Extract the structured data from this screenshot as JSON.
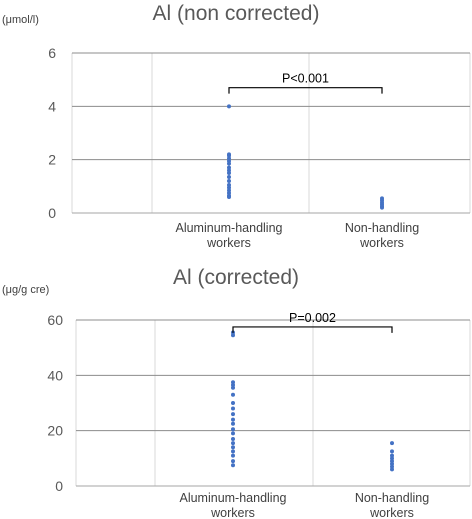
{
  "chart_data": [
    {
      "type": "scatter",
      "title": "Al (non corrected)",
      "ylabel": "(μmol/l)",
      "categories": [
        "Aluminum-handling\nworkers",
        "Non-handling\nworkers"
      ],
      "ylim": [
        0,
        6
      ],
      "yticks": [
        0,
        2,
        4,
        6
      ],
      "grid": true,
      "series": [
        {
          "category": "Aluminum-handling\nworkers",
          "values": [
            4.0,
            2.2,
            2.15,
            2.05,
            1.95,
            1.85,
            1.7,
            1.6,
            1.5,
            1.35,
            1.2,
            1.05,
            0.95,
            0.85,
            0.75,
            0.65,
            0.6
          ]
        },
        {
          "category": "Non-handling\nworkers",
          "values": [
            0.55,
            0.48,
            0.4,
            0.33,
            0.26,
            0.2
          ]
        }
      ],
      "annotation": {
        "text": "P<0.001",
        "from": 0,
        "to": 1,
        "y": 4.7
      },
      "color": "#4472c4"
    },
    {
      "type": "scatter",
      "title": "Al (corrected)",
      "ylabel": "(μg/g cre)",
      "categories": [
        "Aluminum-handling\nworkers",
        "Non-handling\nworkers"
      ],
      "ylim": [
        0,
        60
      ],
      "yticks": [
        0,
        20,
        40,
        60
      ],
      "grid": true,
      "series": [
        {
          "category": "Aluminum-handling\nworkers",
          "values": [
            55.5,
            54.5,
            37.5,
            36.5,
            35.5,
            33,
            30,
            28,
            26,
            24,
            22.5,
            20.5,
            19,
            17,
            15.5,
            14,
            12.5,
            11,
            9,
            7.5
          ]
        },
        {
          "category": "Non-handling\nworkers",
          "values": [
            15.5,
            12.5,
            11,
            10,
            9,
            8,
            7,
            6
          ]
        }
      ],
      "annotation": {
        "text": "P=0.002",
        "from": 0,
        "to": 1,
        "y": 57.5
      },
      "color": "#4472c4"
    }
  ]
}
